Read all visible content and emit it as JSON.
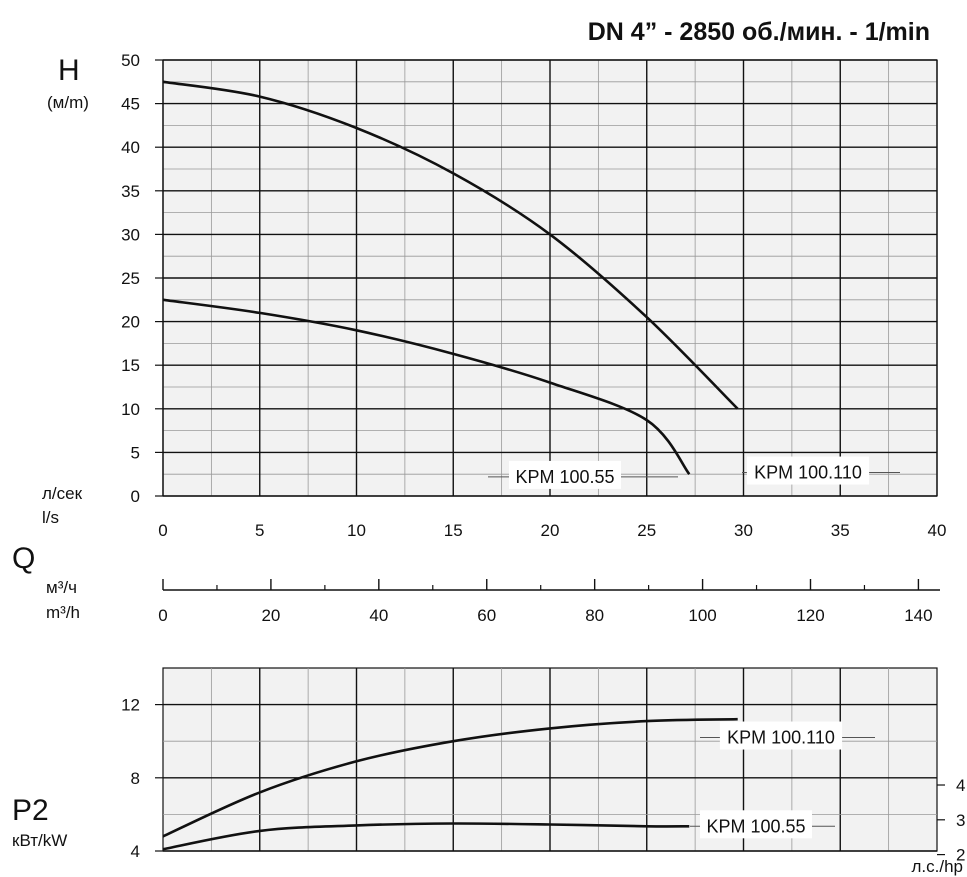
{
  "title": "DN 4” - 2850 об./мин. - 1/min",
  "chart_data": [
    {
      "type": "line",
      "name": "head-chart",
      "ylabel": "H",
      "yunit": "(м/m)",
      "xunit_ru": "л/сек",
      "xunit_en": "l/s",
      "xlim": [
        0,
        40
      ],
      "ylim": [
        0,
        50
      ],
      "xticks": [
        0,
        5,
        10,
        15,
        20,
        25,
        30,
        35,
        40
      ],
      "yticks": [
        0,
        5,
        10,
        15,
        20,
        25,
        30,
        35,
        40,
        45,
        50
      ],
      "grid": true,
      "series": [
        {
          "name": "KPM 100.110",
          "x": [
            0,
            5,
            10,
            15,
            20,
            25,
            29.7
          ],
          "y": [
            47.5,
            45.8,
            42.2,
            37,
            30,
            20.5,
            10
          ]
        },
        {
          "name": "KPM 100.55",
          "x": [
            0,
            5,
            10,
            15,
            20,
            25,
            27.2
          ],
          "y": [
            22.5,
            21,
            19,
            16.3,
            13,
            8.7,
            2.5
          ]
        }
      ]
    },
    {
      "type": "axis",
      "name": "flow-axis",
      "xlabel": "Q",
      "xunit_ru": "м³/ч",
      "xunit_en": "m³/h",
      "xlim": [
        0,
        144
      ],
      "xticks": [
        0,
        20,
        40,
        60,
        80,
        100,
        120,
        140
      ]
    },
    {
      "type": "line",
      "name": "power-chart",
      "ylabel": "P2",
      "yunit": "кВт/kW",
      "y2unit": "л.с./hp",
      "xlim": [
        0,
        40
      ],
      "ylim": [
        4,
        14
      ],
      "yticks": [
        4,
        8,
        12
      ],
      "y2ticks": [
        2,
        3,
        4
      ],
      "grid": true,
      "series": [
        {
          "name": "KPM 100.110",
          "x": [
            0,
            5,
            10,
            15,
            20,
            25,
            29.7
          ],
          "y": [
            4.8,
            7.2,
            8.9,
            10,
            10.7,
            11.1,
            11.2
          ]
        },
        {
          "name": "KPM 100.55",
          "x": [
            0,
            5,
            10,
            15,
            20,
            25,
            27.2
          ],
          "y": [
            4.1,
            5.1,
            5.4,
            5.5,
            5.45,
            5.35,
            5.35
          ]
        }
      ]
    }
  ]
}
